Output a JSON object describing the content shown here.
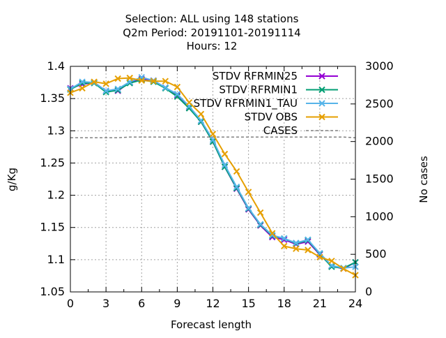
{
  "chart_data": {
    "type": "line",
    "title_lines": [
      "Selection: ALL using   148 stations",
      "Q2m   Period: 20191101-20191114",
      "Hours:  12"
    ],
    "xlabel": "Forecast length",
    "ylabel": "g/Kg",
    "y2label": "No cases",
    "xlim": [
      0,
      24
    ],
    "ylim": [
      1.05,
      1.4
    ],
    "y2lim": [
      0,
      3000
    ],
    "x_ticks": [
      "0",
      "3",
      "6",
      "9",
      "12",
      "15",
      "18",
      "21",
      "24"
    ],
    "y_ticks": [
      "1.05",
      "1.1",
      "1.15",
      "1.2",
      "1.25",
      "1.3",
      "1.35",
      "1.4"
    ],
    "y2_ticks": [
      "0",
      "500",
      "1000",
      "1500",
      "2000",
      "2500",
      "3000"
    ],
    "grid": true,
    "legend_position": "top-right",
    "x": [
      0,
      1,
      2,
      3,
      4,
      5,
      6,
      7,
      8,
      9,
      10,
      11,
      12,
      13,
      14,
      15,
      16,
      17,
      18,
      19,
      20,
      21,
      22,
      23,
      24
    ],
    "series": [
      {
        "name": "STDV RFRMIN25",
        "color": "#9400d3",
        "marker": "x",
        "axis": "y1",
        "values": [
          1.366,
          1.372,
          1.375,
          1.362,
          1.362,
          1.375,
          1.38,
          1.378,
          1.367,
          1.355,
          1.336,
          1.314,
          1.283,
          1.244,
          1.21,
          1.178,
          1.153,
          1.135,
          1.131,
          1.124,
          1.128,
          1.108,
          1.09,
          1.086,
          1.096
        ]
      },
      {
        "name": "STDV RFRMIN1",
        "color": "#009e73",
        "marker": "x",
        "axis": "y1",
        "values": [
          1.364,
          1.374,
          1.374,
          1.36,
          1.363,
          1.374,
          1.379,
          1.376,
          1.366,
          1.353,
          1.335,
          1.314,
          1.283,
          1.244,
          1.211,
          1.179,
          1.154,
          1.137,
          1.133,
          1.125,
          1.13,
          1.109,
          1.089,
          1.087,
          1.096
        ]
      },
      {
        "name": "STDV RFRMIN1_TAU",
        "color": "#56b4e9",
        "marker": "x",
        "axis": "y1",
        "values": [
          1.365,
          1.376,
          1.375,
          1.362,
          1.365,
          1.376,
          1.383,
          1.378,
          1.367,
          1.357,
          1.338,
          1.316,
          1.286,
          1.247,
          1.213,
          1.18,
          1.155,
          1.138,
          1.133,
          1.126,
          1.131,
          1.11,
          1.091,
          1.087,
          1.089
        ]
      },
      {
        "name": "STDV OBS",
        "color": "#e69f00",
        "marker": "x",
        "axis": "y1",
        "values": [
          1.359,
          1.366,
          1.376,
          1.373,
          1.381,
          1.382,
          1.378,
          1.377,
          1.377,
          1.368,
          1.344,
          1.326,
          1.295,
          1.264,
          1.237,
          1.205,
          1.173,
          1.141,
          1.121,
          1.117,
          1.115,
          1.104,
          1.098,
          1.086,
          1.076
        ]
      },
      {
        "name": "CASES",
        "color": "#808080",
        "marker": "none",
        "dash": true,
        "axis": "y2",
        "values": [
          2050,
          2050,
          2050,
          2050,
          2050,
          2060,
          2060,
          2060,
          2060,
          2060,
          2060,
          2060,
          2060,
          2060,
          2060,
          2060,
          2060,
          2060,
          2060,
          2060,
          2060,
          2060,
          2060,
          2060,
          2050
        ]
      }
    ]
  }
}
